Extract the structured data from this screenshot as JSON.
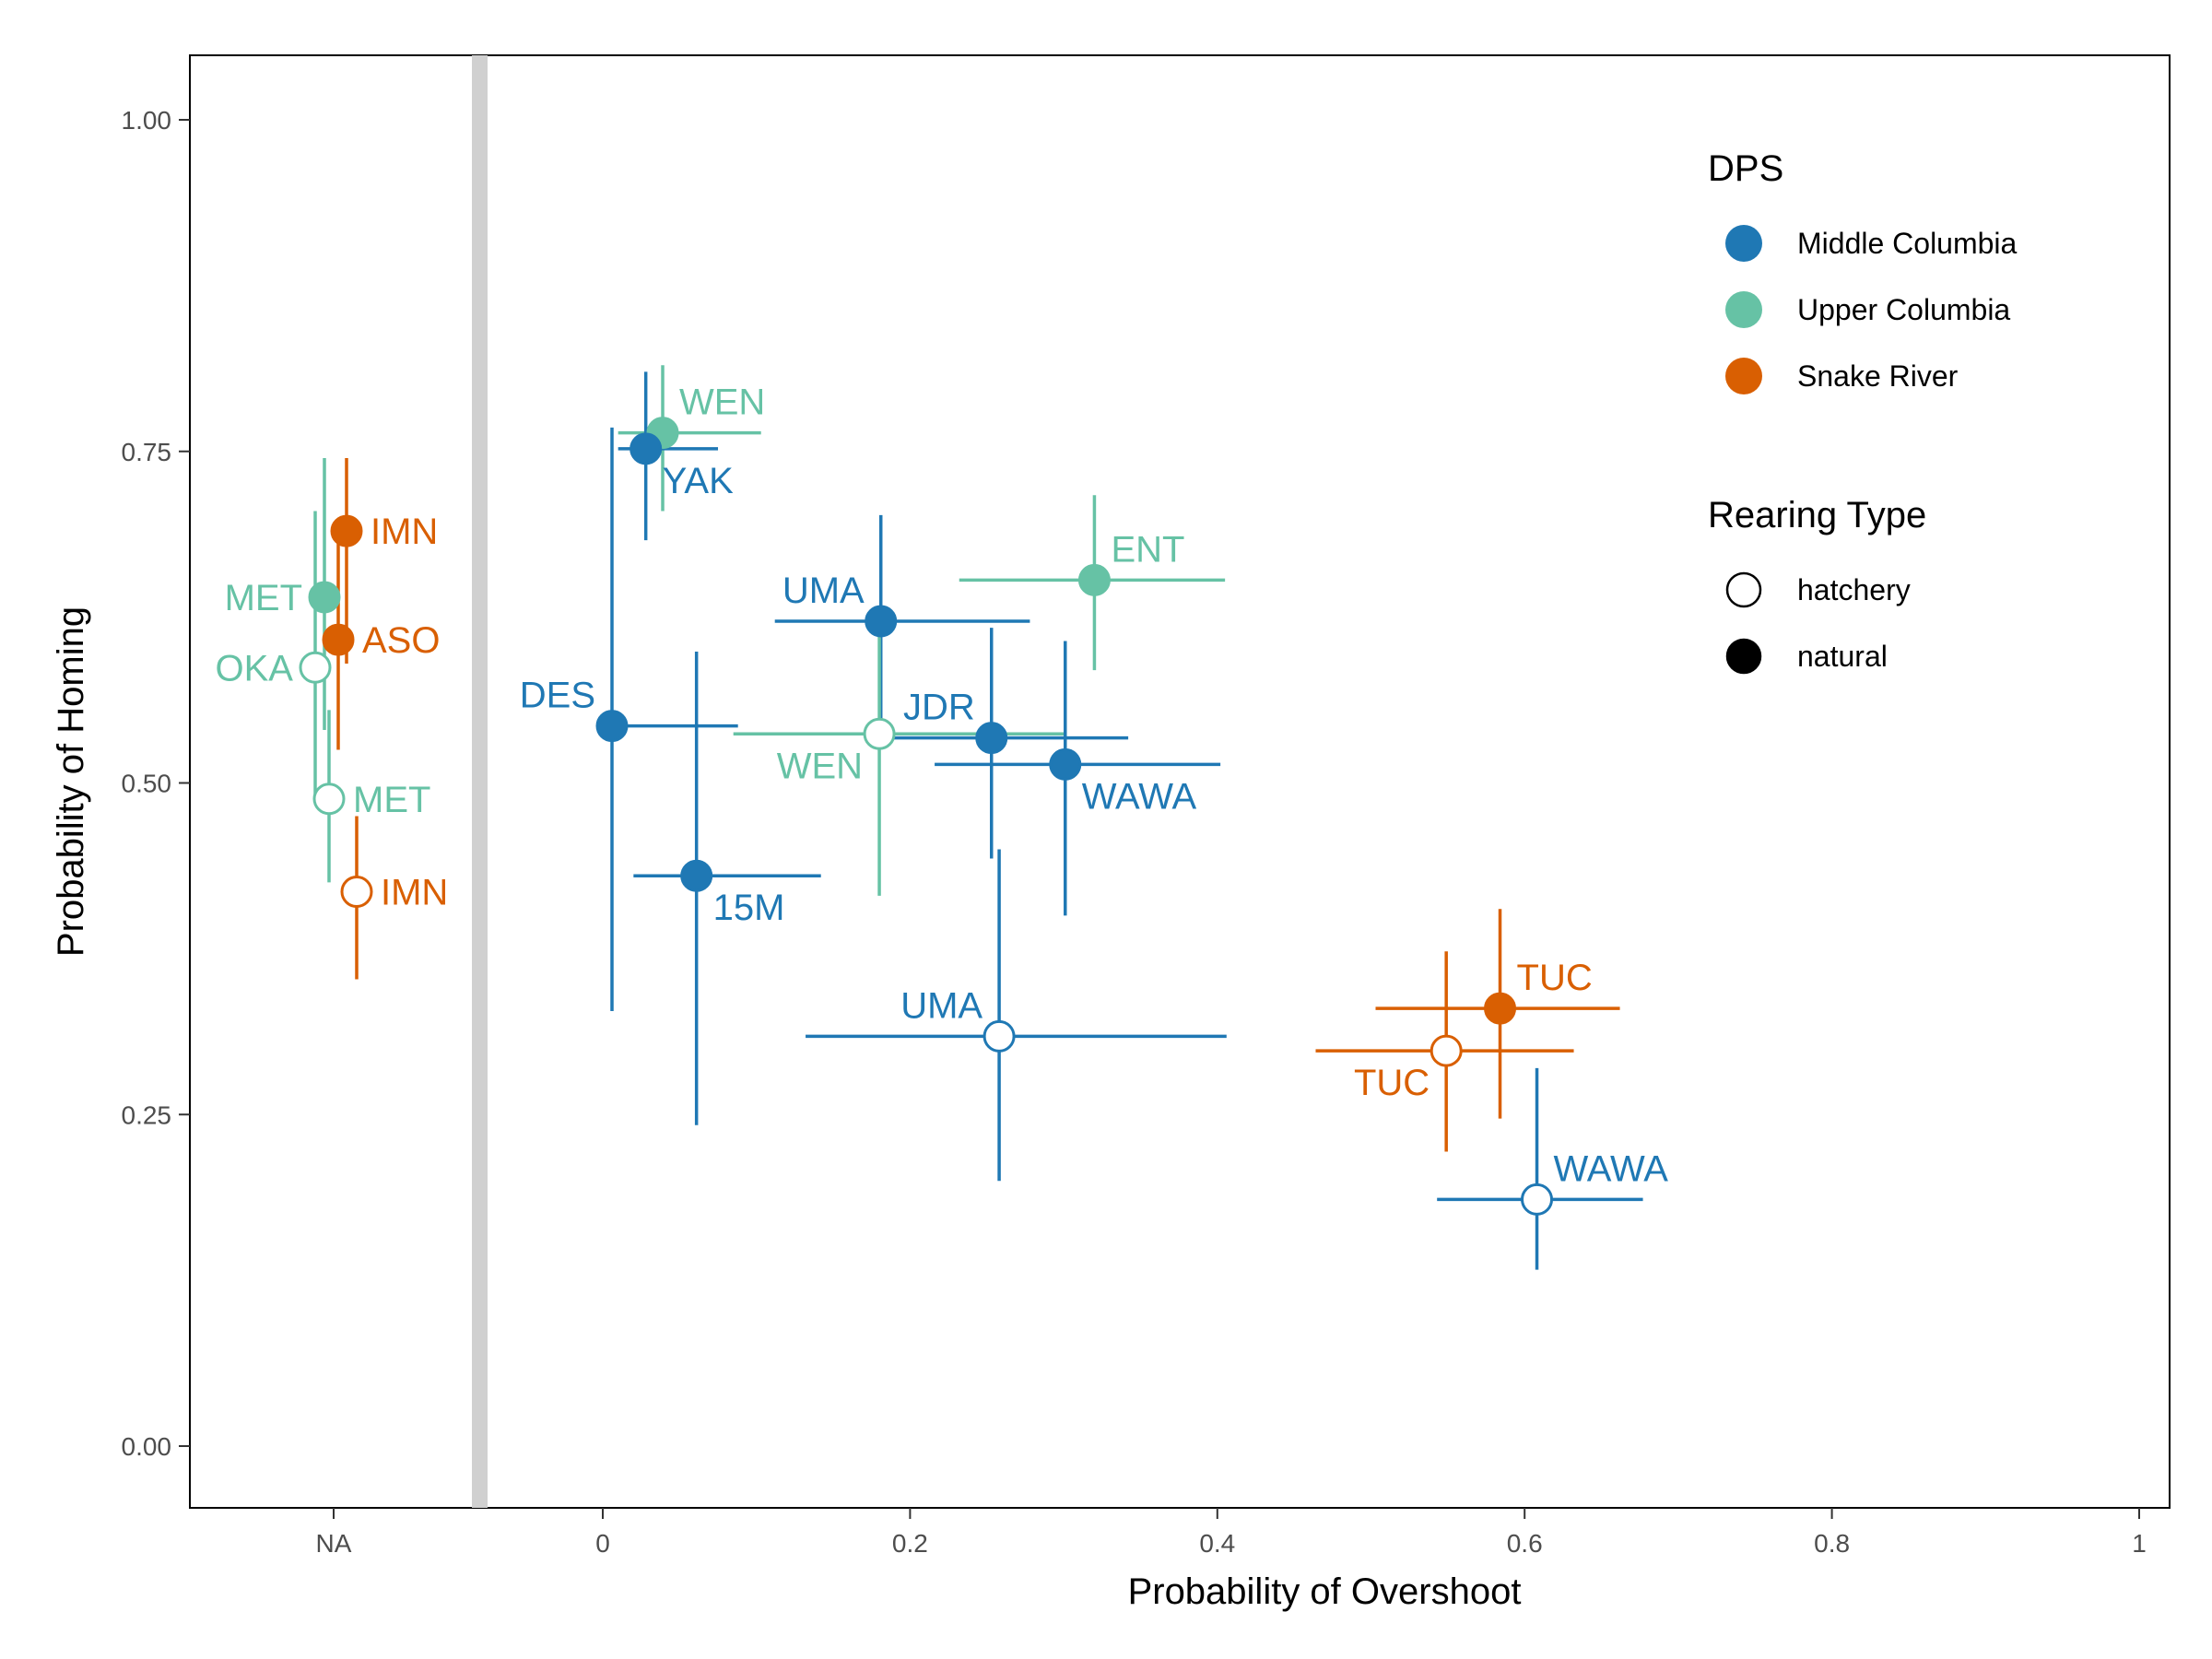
{
  "chart_data": {
    "type": "scatter",
    "title": "",
    "xlabel": "Probability of Overshoot",
    "ylabel": "Probability of Homing",
    "xlim": [
      0,
      1
    ],
    "ylim": [
      0,
      1
    ],
    "x_ticks": [
      "NA",
      "0",
      "0.2",
      "0.4",
      "0.6",
      "0.8",
      "1"
    ],
    "y_ticks": [
      "0.00",
      "0.25",
      "0.50",
      "0.75",
      "1.00"
    ],
    "grid": false,
    "legend_placement": "top-right",
    "legend": {
      "color_title": "DPS",
      "color_items": [
        {
          "label": "Middle Columbia",
          "color": "#1f78b4"
        },
        {
          "label": "Upper Columbia",
          "color": "#66c2a5"
        },
        {
          "label": "Snake River",
          "color": "#d95f02"
        }
      ],
      "shape_title": "Rearing Type",
      "shape_items": [
        {
          "label": "hatchery",
          "fill": "open"
        },
        {
          "label": "natural",
          "fill": "filled"
        }
      ]
    },
    "na_points": [
      {
        "label": "IMN",
        "dps": "Snake River",
        "rearing": "natural",
        "y": 0.69,
        "ylo": 0.59,
        "yhi": 0.745,
        "offset": 0.14,
        "label_side": "right"
      },
      {
        "label": "MET",
        "dps": "Upper Columbia",
        "rearing": "natural",
        "y": 0.64,
        "ylo": 0.54,
        "yhi": 0.745,
        "offset": -0.1,
        "label_side": "left"
      },
      {
        "label": "ASO",
        "dps": "Snake River",
        "rearing": "natural",
        "y": 0.608,
        "ylo": 0.525,
        "yhi": 0.695,
        "offset": 0.05,
        "label_side": "right"
      },
      {
        "label": "OKA",
        "dps": "Upper Columbia",
        "rearing": "hatchery",
        "y": 0.587,
        "ylo": 0.487,
        "yhi": 0.705,
        "offset": -0.2,
        "label_side": "left"
      },
      {
        "label": "MET",
        "dps": "Upper Columbia",
        "rearing": "hatchery",
        "y": 0.488,
        "ylo": 0.425,
        "yhi": 0.555,
        "offset": -0.05,
        "label_side": "right"
      },
      {
        "label": "IMN",
        "dps": "Snake River",
        "rearing": "hatchery",
        "y": 0.418,
        "ylo": 0.352,
        "yhi": 0.475,
        "offset": 0.25,
        "label_side": "right"
      }
    ],
    "points": [
      {
        "label": "WEN",
        "dps": "Upper Columbia",
        "rearing": "natural",
        "x": 0.039,
        "xlo": 0.01,
        "xhi": 0.103,
        "y": 0.764,
        "ylo": 0.705,
        "yhi": 0.815,
        "label_pos": "above-right"
      },
      {
        "label": "YAK",
        "dps": "Middle Columbia",
        "rearing": "natural",
        "x": 0.028,
        "xlo": 0.01,
        "xhi": 0.075,
        "y": 0.752,
        "ylo": 0.683,
        "yhi": 0.81,
        "label_pos": "below-right"
      },
      {
        "label": "ENT",
        "dps": "Upper Columbia",
        "rearing": "natural",
        "x": 0.32,
        "xlo": 0.232,
        "xhi": 0.405,
        "y": 0.653,
        "ylo": 0.585,
        "yhi": 0.717,
        "label_pos": "above-right"
      },
      {
        "label": "UMA",
        "dps": "Middle Columbia",
        "rearing": "natural",
        "x": 0.181,
        "xlo": 0.112,
        "xhi": 0.278,
        "y": 0.622,
        "ylo": 0.535,
        "yhi": 0.702,
        "label_pos": "above-left"
      },
      {
        "label": "DES",
        "dps": "Middle Columbia",
        "rearing": "natural",
        "x": 0.006,
        "xlo": 0.005,
        "xhi": 0.088,
        "y": 0.543,
        "ylo": 0.328,
        "yhi": 0.768,
        "label_pos": "above-left"
      },
      {
        "label": "WEN",
        "dps": "Upper Columbia",
        "rearing": "hatchery",
        "x": 0.18,
        "xlo": 0.085,
        "xhi": 0.302,
        "y": 0.537,
        "ylo": 0.415,
        "yhi": 0.615,
        "label_pos": "below-left"
      },
      {
        "label": "JDR",
        "dps": "Middle Columbia",
        "rearing": "natural",
        "x": 0.253,
        "xlo": 0.18,
        "xhi": 0.342,
        "y": 0.534,
        "ylo": 0.443,
        "yhi": 0.617,
        "label_pos": "above-left"
      },
      {
        "label": "WAWA",
        "dps": "Middle Columbia",
        "rearing": "natural",
        "x": 0.301,
        "xlo": 0.216,
        "xhi": 0.402,
        "y": 0.514,
        "ylo": 0.4,
        "yhi": 0.607,
        "label_pos": "below-right"
      },
      {
        "label": "15M",
        "dps": "Middle Columbia",
        "rearing": "natural",
        "x": 0.061,
        "xlo": 0.02,
        "xhi": 0.142,
        "y": 0.43,
        "ylo": 0.242,
        "yhi": 0.599,
        "label_pos": "below-right"
      },
      {
        "label": "UMA",
        "dps": "Middle Columbia",
        "rearing": "hatchery",
        "x": 0.258,
        "xlo": 0.132,
        "xhi": 0.406,
        "y": 0.309,
        "ylo": 0.2,
        "yhi": 0.45,
        "label_pos": "above-left"
      },
      {
        "label": "TUC",
        "dps": "Snake River",
        "rearing": "natural",
        "x": 0.584,
        "xlo": 0.503,
        "xhi": 0.662,
        "y": 0.33,
        "ylo": 0.247,
        "yhi": 0.405,
        "label_pos": "above-right"
      },
      {
        "label": "TUC",
        "dps": "Snake River",
        "rearing": "hatchery",
        "x": 0.549,
        "xlo": 0.464,
        "xhi": 0.632,
        "y": 0.298,
        "ylo": 0.222,
        "yhi": 0.373,
        "label_pos": "below-left"
      },
      {
        "label": "WAWA",
        "dps": "Middle Columbia",
        "rearing": "hatchery",
        "x": 0.608,
        "xlo": 0.543,
        "xhi": 0.677,
        "y": 0.186,
        "ylo": 0.133,
        "yhi": 0.285,
        "label_pos": "above-right"
      }
    ]
  }
}
